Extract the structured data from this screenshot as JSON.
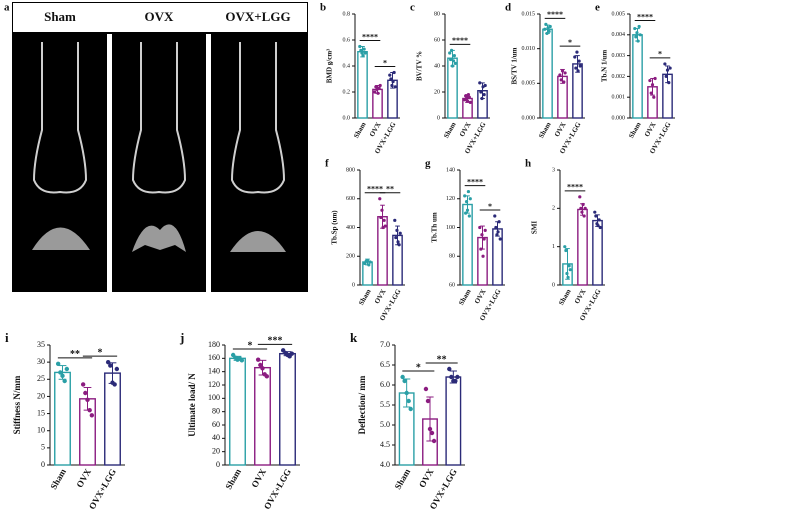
{
  "panel_a": {
    "label": "a",
    "columns": [
      "Sham",
      "OVX",
      "OVX+LGG"
    ]
  },
  "chart_data": [
    {
      "type": "bar",
      "label": "b",
      "y_label": "BMD g/cm³",
      "categories": [
        "Sham",
        "OVX",
        "OVX+LGG"
      ],
      "colors": [
        "#2a9fa6",
        "#8b1c80",
        "#2b2a78"
      ],
      "values": [
        0.51,
        0.22,
        0.29
      ],
      "errors": [
        0.04,
        0.03,
        0.06
      ],
      "points": [
        [
          0.55,
          0.52,
          0.5,
          0.48,
          0.53,
          0.5
        ],
        [
          0.2,
          0.24,
          0.22,
          0.19,
          0.23,
          0.25
        ],
        [
          0.33,
          0.3,
          0.25,
          0.28,
          0.35,
          0.24
        ]
      ],
      "ylim": [
        0,
        0.8
      ],
      "yticks": [
        {
          "value": 0,
          "label": "0.0"
        },
        {
          "value": 0.2,
          "label": "0.2"
        },
        {
          "value": 0.4,
          "label": "0.4"
        },
        {
          "value": 0.6,
          "label": "0.6"
        },
        {
          "value": 0.8,
          "label": "0.8"
        }
      ],
      "annotations": [
        "****",
        "*"
      ]
    },
    {
      "type": "bar",
      "label": "c",
      "y_label": "BV/TV %",
      "categories": [
        "Sham",
        "OVX",
        "OVX+LGG"
      ],
      "colors": [
        "#2a9fa6",
        "#8b1c80",
        "#2b2a78"
      ],
      "values": [
        46,
        15,
        21
      ],
      "errors": [
        6,
        3,
        6
      ],
      "points": [
        [
          50,
          45,
          52,
          40,
          44,
          48,
          42
        ],
        [
          14,
          17,
          15,
          13,
          18,
          16,
          12
        ],
        [
          27,
          20,
          15,
          24,
          18,
          25
        ]
      ],
      "ylim": [
        0,
        80
      ],
      "yticks": [
        0,
        20,
        40,
        60,
        80
      ],
      "annotations": [
        "****",
        null
      ]
    },
    {
      "type": "bar",
      "label": "d",
      "y_label": "BS/TV 1/um",
      "categories": [
        "Sham",
        "OVX",
        "OVX+LGG"
      ],
      "colors": [
        "#2a9fa6",
        "#8b1c80",
        "#2b2a78"
      ],
      "values": [
        0.0128,
        0.006,
        0.0078
      ],
      "errors": [
        0.0006,
        0.001,
        0.0012
      ],
      "points": [
        [
          0.0128,
          0.0135,
          0.0122,
          0.013,
          0.0125,
          0.0132
        ],
        [
          0.0062,
          0.0055,
          0.0068,
          0.0052,
          0.0065
        ],
        [
          0.0088,
          0.0072,
          0.0095,
          0.0068,
          0.0082,
          0.0075
        ]
      ],
      "ylim": [
        0,
        0.015
      ],
      "yticks": [
        {
          "value": 0,
          "label": "0.000"
        },
        {
          "value": 0.005,
          "label": "0.005"
        },
        {
          "value": 0.01,
          "label": "0.010"
        },
        {
          "value": 0.015,
          "label": "0.015"
        }
      ],
      "annotations": [
        "****",
        "*"
      ]
    },
    {
      "type": "bar",
      "label": "e",
      "y_label": "Tb.N 1/um",
      "categories": [
        "Sham",
        "OVX",
        "OVX+LGG"
      ],
      "colors": [
        "#2a9fa6",
        "#8b1c80",
        "#2b2a78"
      ],
      "values": [
        0.004,
        0.0015,
        0.0021
      ],
      "errors": [
        0.0003,
        0.0004,
        0.0004
      ],
      "points": [
        [
          0.0043,
          0.0039,
          0.0041,
          0.0037,
          0.0044,
          0.004
        ],
        [
          0.0018,
          0.0012,
          0.0016,
          0.001,
          0.0019
        ],
        [
          0.0026,
          0.002,
          0.0023,
          0.0017,
          0.0024
        ]
      ],
      "ylim": [
        0,
        0.005
      ],
      "yticks": [
        {
          "value": 0,
          "label": "0.000"
        },
        {
          "value": 0.001,
          "label": "0.001"
        },
        {
          "value": 0.002,
          "label": "0.002"
        },
        {
          "value": 0.003,
          "label": "0.003"
        },
        {
          "value": 0.004,
          "label": "0.004"
        },
        {
          "value": 0.005,
          "label": "0.005"
        }
      ],
      "annotations": [
        "****",
        "*"
      ]
    },
    {
      "type": "bar",
      "label": "f",
      "y_label": "Tb.Sp (um)",
      "categories": [
        "Sham",
        "OVX",
        "OVX+LGG"
      ],
      "colors": [
        "#2a9fa6",
        "#8b1c80",
        "#2b2a78"
      ],
      "values": [
        160,
        475,
        345
      ],
      "errors": [
        20,
        80,
        65
      ],
      "points": [
        [
          150,
          165,
          170,
          140,
          160
        ],
        [
          600,
          470,
          520,
          400,
          450,
          410
        ],
        [
          450,
          330,
          380,
          300,
          280,
          360
        ]
      ],
      "ylim": [
        0,
        800
      ],
      "yticks": [
        0,
        200,
        400,
        600,
        800
      ],
      "annotations": [
        "****",
        "**"
      ]
    },
    {
      "type": "bar",
      "label": "g",
      "y_label": "Tb.Th um",
      "categories": [
        "Sham",
        "OVX",
        "OVX+LGG"
      ],
      "colors": [
        "#2a9fa6",
        "#8b1c80",
        "#2b2a78"
      ],
      "values": [
        116,
        93,
        99
      ],
      "errors": [
        6,
        8,
        5
      ],
      "points": [
        [
          122,
          110,
          118,
          112,
          125,
          108,
          120
        ],
        [
          100,
          85,
          95,
          80,
          92,
          98
        ],
        [
          108,
          100,
          95,
          97,
          104,
          92
        ]
      ],
      "ylim": [
        60,
        140
      ],
      "yticks": [
        60,
        80,
        100,
        120,
        140
      ],
      "annotations": [
        "****",
        "*"
      ]
    },
    {
      "type": "bar",
      "label": "h",
      "y_label": "SMI",
      "categories": [
        "Sham",
        "OVX",
        "OVX+LGG"
      ],
      "colors": [
        "#2a9fa6",
        "#8b1c80",
        "#2b2a78"
      ],
      "values": [
        0.55,
        1.97,
        1.68
      ],
      "errors": [
        0.4,
        0.15,
        0.15
      ],
      "points": [
        [
          1.0,
          0.9,
          0.3,
          0.2,
          0.5,
          0.4
        ],
        [
          2.3,
          2.0,
          1.9,
          2.1,
          1.8,
          2.0
        ],
        [
          1.9,
          1.8,
          1.6,
          1.55,
          1.7,
          1.5
        ]
      ],
      "ylim": [
        0,
        3
      ],
      "yticks": [
        0,
        1,
        2,
        3
      ],
      "annotations": [
        "****",
        null
      ]
    },
    {
      "type": "bar",
      "label": "i",
      "y_label": "Stiffness N/mm",
      "categories": [
        "Sham",
        "OVX",
        "OVX+LGG"
      ],
      "colors": [
        "#2a9fa6",
        "#8b1c80",
        "#2b2a78"
      ],
      "values": [
        27,
        19.3,
        26.8
      ],
      "errors": [
        2,
        3.3,
        3
      ],
      "points": [
        [
          29.5,
          27,
          26,
          24.5,
          28
        ],
        [
          23.5,
          21,
          19,
          16,
          14.5
        ],
        [
          30,
          29,
          24,
          23.5,
          28
        ]
      ],
      "ylim": [
        0,
        35
      ],
      "yticks": [
        0,
        5,
        10,
        15,
        20,
        25,
        30,
        35
      ],
      "annotations": [
        "**",
        "*"
      ]
    },
    {
      "type": "bar",
      "label": "j",
      "y_label": "Ultimate load/ N",
      "categories": [
        "Sham",
        "OVX",
        "OVX+LGG"
      ],
      "colors": [
        "#2a9fa6",
        "#8b1c80",
        "#2b2a78"
      ],
      "values": [
        160,
        146,
        167
      ],
      "errors": [
        3,
        11,
        3
      ],
      "points": [
        [
          165,
          161,
          158,
          160,
          157
        ],
        [
          158,
          150,
          145,
          136,
          133
        ],
        [
          172,
          168,
          165,
          163,
          167
        ]
      ],
      "ylim": [
        0,
        180
      ],
      "yticks": [
        0,
        20,
        40,
        60,
        80,
        100,
        120,
        140,
        160,
        180
      ],
      "annotations": [
        "*",
        "***"
      ]
    },
    {
      "type": "bar",
      "label": "k",
      "y_label": "Deflection/ mm",
      "categories": [
        "Sham",
        "OVX",
        "OVX+LGG"
      ],
      "colors": [
        "#2a9fa6",
        "#8b1c80",
        "#2b2a78"
      ],
      "values": [
        5.8,
        5.15,
        6.2
      ],
      "errors": [
        0.35,
        0.55,
        0.15
      ],
      "points": [
        [
          6.2,
          6.1,
          5.8,
          5.6,
          5.4
        ],
        [
          5.9,
          5.6,
          4.9,
          4.8,
          4.6
        ],
        [
          6.4,
          6.2,
          6.1,
          6.1,
          6.2
        ]
      ],
      "ylim": [
        4,
        7
      ],
      "yticks": [
        {
          "value": 4,
          "label": "4.0"
        },
        {
          "value": 4.5,
          "label": "4.5"
        },
        {
          "value": 5,
          "label": "5.0"
        },
        {
          "value": 5.5,
          "label": "5.5"
        },
        {
          "value": 6,
          "label": "6.0"
        },
        {
          "value": 6.5,
          "label": "6.5"
        },
        {
          "value": 7,
          "label": "7.0"
        }
      ],
      "annotations": [
        "*",
        "**"
      ]
    }
  ]
}
